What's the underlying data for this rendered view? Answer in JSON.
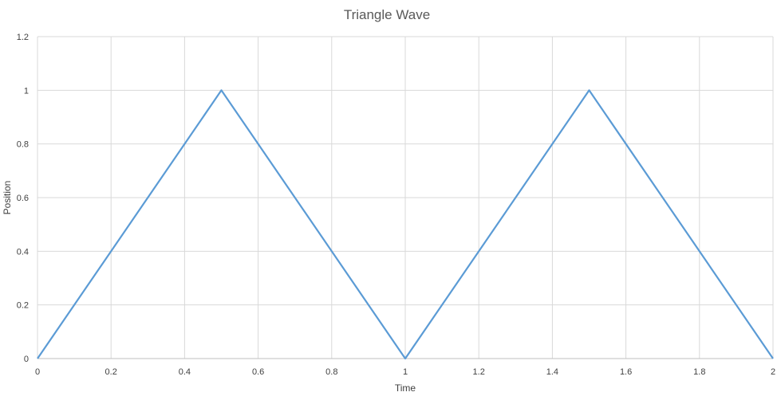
{
  "chart_data": {
    "type": "line",
    "title": "Triangle Wave",
    "xlabel": "Time",
    "ylabel": "Position",
    "xlim": [
      0,
      2
    ],
    "ylim": [
      0,
      1.2
    ],
    "x_ticks": [
      "0",
      "0.2",
      "0.4",
      "0.6",
      "0.8",
      "1",
      "1.2",
      "1.4",
      "1.6",
      "1.8",
      "2"
    ],
    "y_ticks": [
      "0",
      "0.2",
      "0.4",
      "0.6",
      "0.8",
      "1",
      "1.2"
    ],
    "grid": true,
    "legend": "none",
    "series": [
      {
        "color": "#5b9bd5",
        "x": [
          0,
          0.5,
          1,
          1.5,
          2
        ],
        "y": [
          0,
          1,
          0,
          1,
          0
        ]
      }
    ]
  }
}
